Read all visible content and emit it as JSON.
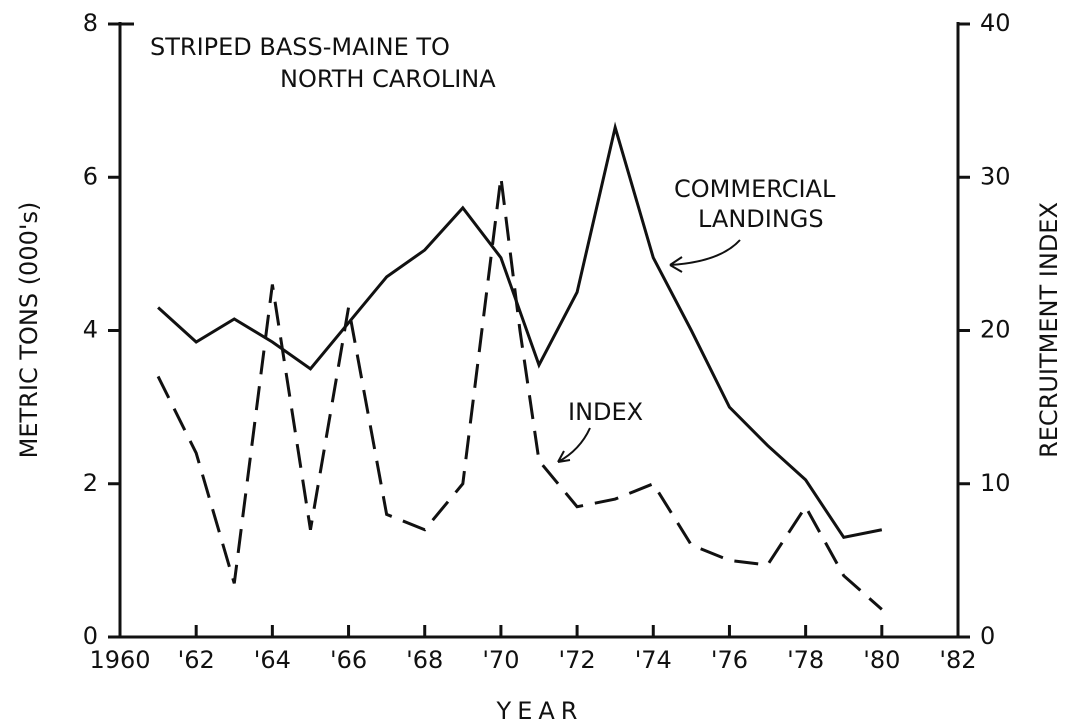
{
  "chart_data": {
    "type": "line",
    "title": [
      "STRIPED BASS-MAINE TO",
      "NORTH CAROLINA"
    ],
    "xlabel": "YEAR",
    "ylabel": "METRIC TONS (000's)",
    "y2label": "RECRUITMENT INDEX",
    "xlim": [
      1960,
      1982
    ],
    "xticks": [
      1960,
      {
        "value": 1962,
        "label": "'62"
      },
      {
        "value": 1964,
        "label": "'64"
      },
      {
        "value": 1966,
        "label": "'66"
      },
      {
        "value": 1968,
        "label": "'68"
      },
      {
        "value": 1970,
        "label": "'70"
      },
      {
        "value": 1972,
        "label": "'72"
      },
      {
        "value": 1974,
        "label": "'74"
      },
      {
        "value": 1976,
        "label": "'76"
      },
      {
        "value": 1978,
        "label": "'78"
      },
      {
        "value": 1980,
        "label": "'80"
      },
      {
        "value": 1982,
        "label": "'82"
      }
    ],
    "ylim": [
      0,
      8
    ],
    "yticks": [
      0,
      2,
      4,
      6,
      8
    ],
    "y2lim": [
      0,
      40
    ],
    "y2ticks": [
      0,
      10,
      20,
      30,
      40
    ],
    "series": [
      {
        "name": [
          "COMMERCIAL",
          "LANDINGS"
        ],
        "color": "#111",
        "style": "solid",
        "x": [
          1961,
          1962,
          1963,
          1964,
          1965,
          1966,
          1967,
          1968,
          1969,
          1970,
          1971,
          1972,
          1973,
          1974,
          1975,
          1976,
          1977,
          1978,
          1979,
          1980
        ],
        "values": [
          4.3,
          3.85,
          4.15,
          3.85,
          3.5,
          4.1,
          4.7,
          5.05,
          5.6,
          4.95,
          3.55,
          4.5,
          6.65,
          4.95,
          4.0,
          3.0,
          2.5,
          2.05,
          1.3,
          1.4
        ]
      },
      {
        "name": "INDEX",
        "color": "#111",
        "style": "dashed",
        "axis": "y2",
        "x": [
          1961,
          1962,
          1963,
          1964,
          1965,
          1966,
          1967,
          1968,
          1969,
          1970,
          1970.5,
          1971,
          1972,
          1973,
          1974,
          1975,
          1976,
          1977,
          1978,
          1979,
          1980
        ],
        "values": [
          17,
          12,
          3.5,
          23,
          7,
          21.5,
          8,
          7,
          10,
          30,
          20,
          11.5,
          8.5,
          9,
          10,
          6,
          5,
          4.7,
          8.5,
          4,
          1.8
        ]
      }
    ]
  }
}
